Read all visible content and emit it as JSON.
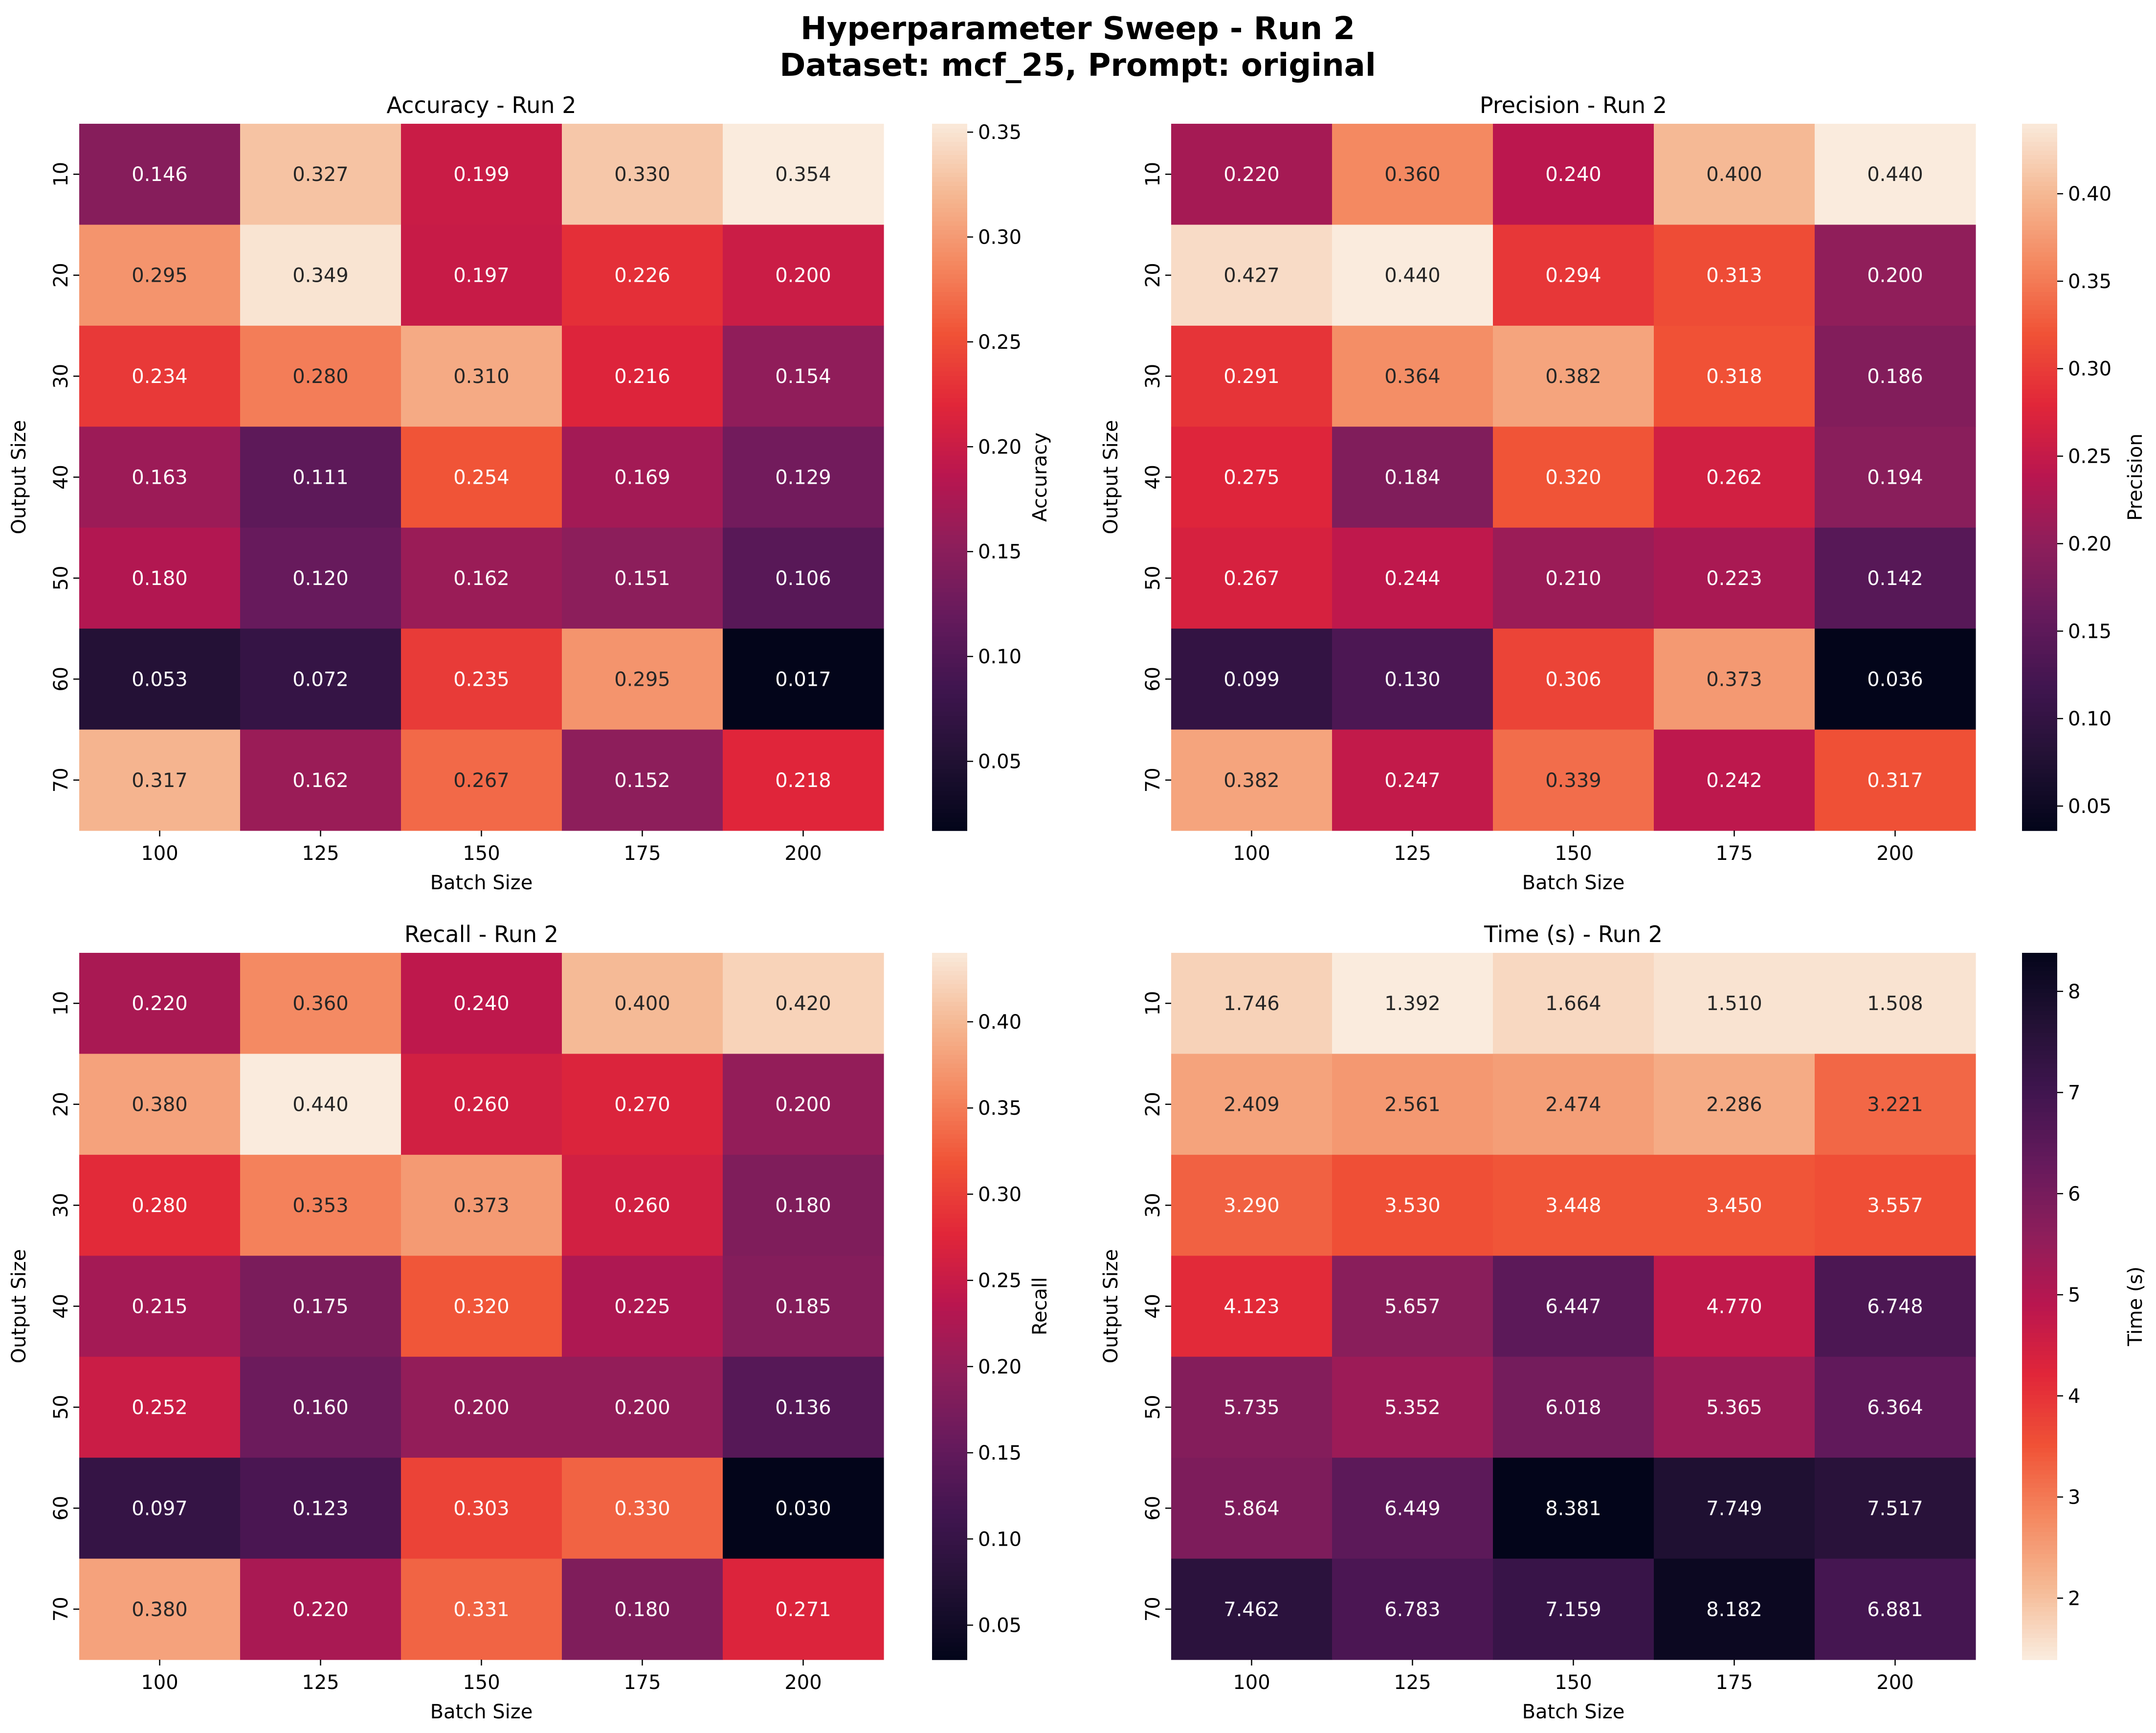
{
  "figure": {
    "title_line1": "Hyperparameter Sweep - Run 2",
    "title_line2": "Dataset: mcf_25, Prompt: original"
  },
  "chart_data": [
    {
      "type": "heatmap",
      "title": "Accuracy - Run 2",
      "xlabel": "Batch Size",
      "ylabel": "Output Size",
      "colorbar_label": "Accuracy",
      "colormap": "rocket",
      "colormap_reversed": false,
      "x_categories": [
        "100",
        "125",
        "150",
        "175",
        "200"
      ],
      "y_categories": [
        "10",
        "20",
        "30",
        "40",
        "50",
        "60",
        "70"
      ],
      "values": [
        [
          0.146,
          0.327,
          0.199,
          0.33,
          0.354
        ],
        [
          0.295,
          0.349,
          0.197,
          0.226,
          0.2
        ],
        [
          0.234,
          0.28,
          0.31,
          0.216,
          0.154
        ],
        [
          0.163,
          0.111,
          0.254,
          0.169,
          0.129
        ],
        [
          0.18,
          0.12,
          0.162,
          0.151,
          0.106
        ],
        [
          0.053,
          0.072,
          0.235,
          0.295,
          0.017
        ],
        [
          0.317,
          0.162,
          0.267,
          0.152,
          0.218
        ]
      ],
      "vmin": 0.017,
      "vmax": 0.354,
      "colorbar_ticks": [
        "0.05",
        "0.10",
        "0.15",
        "0.20",
        "0.25",
        "0.30",
        "0.35"
      ]
    },
    {
      "type": "heatmap",
      "title": "Precision - Run 2",
      "xlabel": "Batch Size",
      "ylabel": "Output Size",
      "colorbar_label": "Precision",
      "colormap": "rocket",
      "colormap_reversed": false,
      "x_categories": [
        "100",
        "125",
        "150",
        "175",
        "200"
      ],
      "y_categories": [
        "10",
        "20",
        "30",
        "40",
        "50",
        "60",
        "70"
      ],
      "values": [
        [
          0.22,
          0.36,
          0.24,
          0.4,
          0.44
        ],
        [
          0.427,
          0.44,
          0.294,
          0.313,
          0.2
        ],
        [
          0.291,
          0.364,
          0.382,
          0.318,
          0.186
        ],
        [
          0.275,
          0.184,
          0.32,
          0.262,
          0.194
        ],
        [
          0.267,
          0.244,
          0.21,
          0.223,
          0.142
        ],
        [
          0.099,
          0.13,
          0.306,
          0.373,
          0.036
        ],
        [
          0.382,
          0.247,
          0.339,
          0.242,
          0.317
        ]
      ],
      "vmin": 0.036,
      "vmax": 0.44,
      "colorbar_ticks": [
        "0.05",
        "0.10",
        "0.15",
        "0.20",
        "0.25",
        "0.30",
        "0.35",
        "0.40"
      ]
    },
    {
      "type": "heatmap",
      "title": "Recall - Run 2",
      "xlabel": "Batch Size",
      "ylabel": "Output Size",
      "colorbar_label": "Recall",
      "colormap": "rocket",
      "colormap_reversed": false,
      "x_categories": [
        "100",
        "125",
        "150",
        "175",
        "200"
      ],
      "y_categories": [
        "10",
        "20",
        "30",
        "40",
        "50",
        "60",
        "70"
      ],
      "values": [
        [
          0.22,
          0.36,
          0.24,
          0.4,
          0.42
        ],
        [
          0.38,
          0.44,
          0.26,
          0.27,
          0.2
        ],
        [
          0.28,
          0.353,
          0.373,
          0.26,
          0.18
        ],
        [
          0.215,
          0.175,
          0.32,
          0.225,
          0.185
        ],
        [
          0.252,
          0.16,
          0.2,
          0.2,
          0.136
        ],
        [
          0.097,
          0.123,
          0.303,
          0.33,
          0.03
        ],
        [
          0.38,
          0.22,
          0.331,
          0.18,
          0.271
        ]
      ],
      "vmin": 0.03,
      "vmax": 0.44,
      "colorbar_ticks": [
        "0.05",
        "0.10",
        "0.15",
        "0.20",
        "0.25",
        "0.30",
        "0.35",
        "0.40"
      ]
    },
    {
      "type": "heatmap",
      "title": "Time (s) - Run 2",
      "xlabel": "Batch Size",
      "ylabel": "Output Size",
      "colorbar_label": "Time (s)",
      "colormap": "rocket",
      "colormap_reversed": true,
      "x_categories": [
        "100",
        "125",
        "150",
        "175",
        "200"
      ],
      "y_categories": [
        "10",
        "20",
        "30",
        "40",
        "50",
        "60",
        "70"
      ],
      "values": [
        [
          1.746,
          1.392,
          1.664,
          1.51,
          1.508
        ],
        [
          2.409,
          2.561,
          2.474,
          2.286,
          3.221
        ],
        [
          3.29,
          3.53,
          3.448,
          3.45,
          3.557
        ],
        [
          4.123,
          5.657,
          6.447,
          4.77,
          6.748
        ],
        [
          5.735,
          5.352,
          6.018,
          5.365,
          6.364
        ],
        [
          5.864,
          6.449,
          8.381,
          7.749,
          7.517
        ],
        [
          7.462,
          6.783,
          7.159,
          8.182,
          6.881
        ]
      ],
      "vmin": 1.392,
      "vmax": 8.381,
      "colorbar_ticks": [
        "2",
        "3",
        "4",
        "5",
        "6",
        "7",
        "8"
      ]
    }
  ]
}
